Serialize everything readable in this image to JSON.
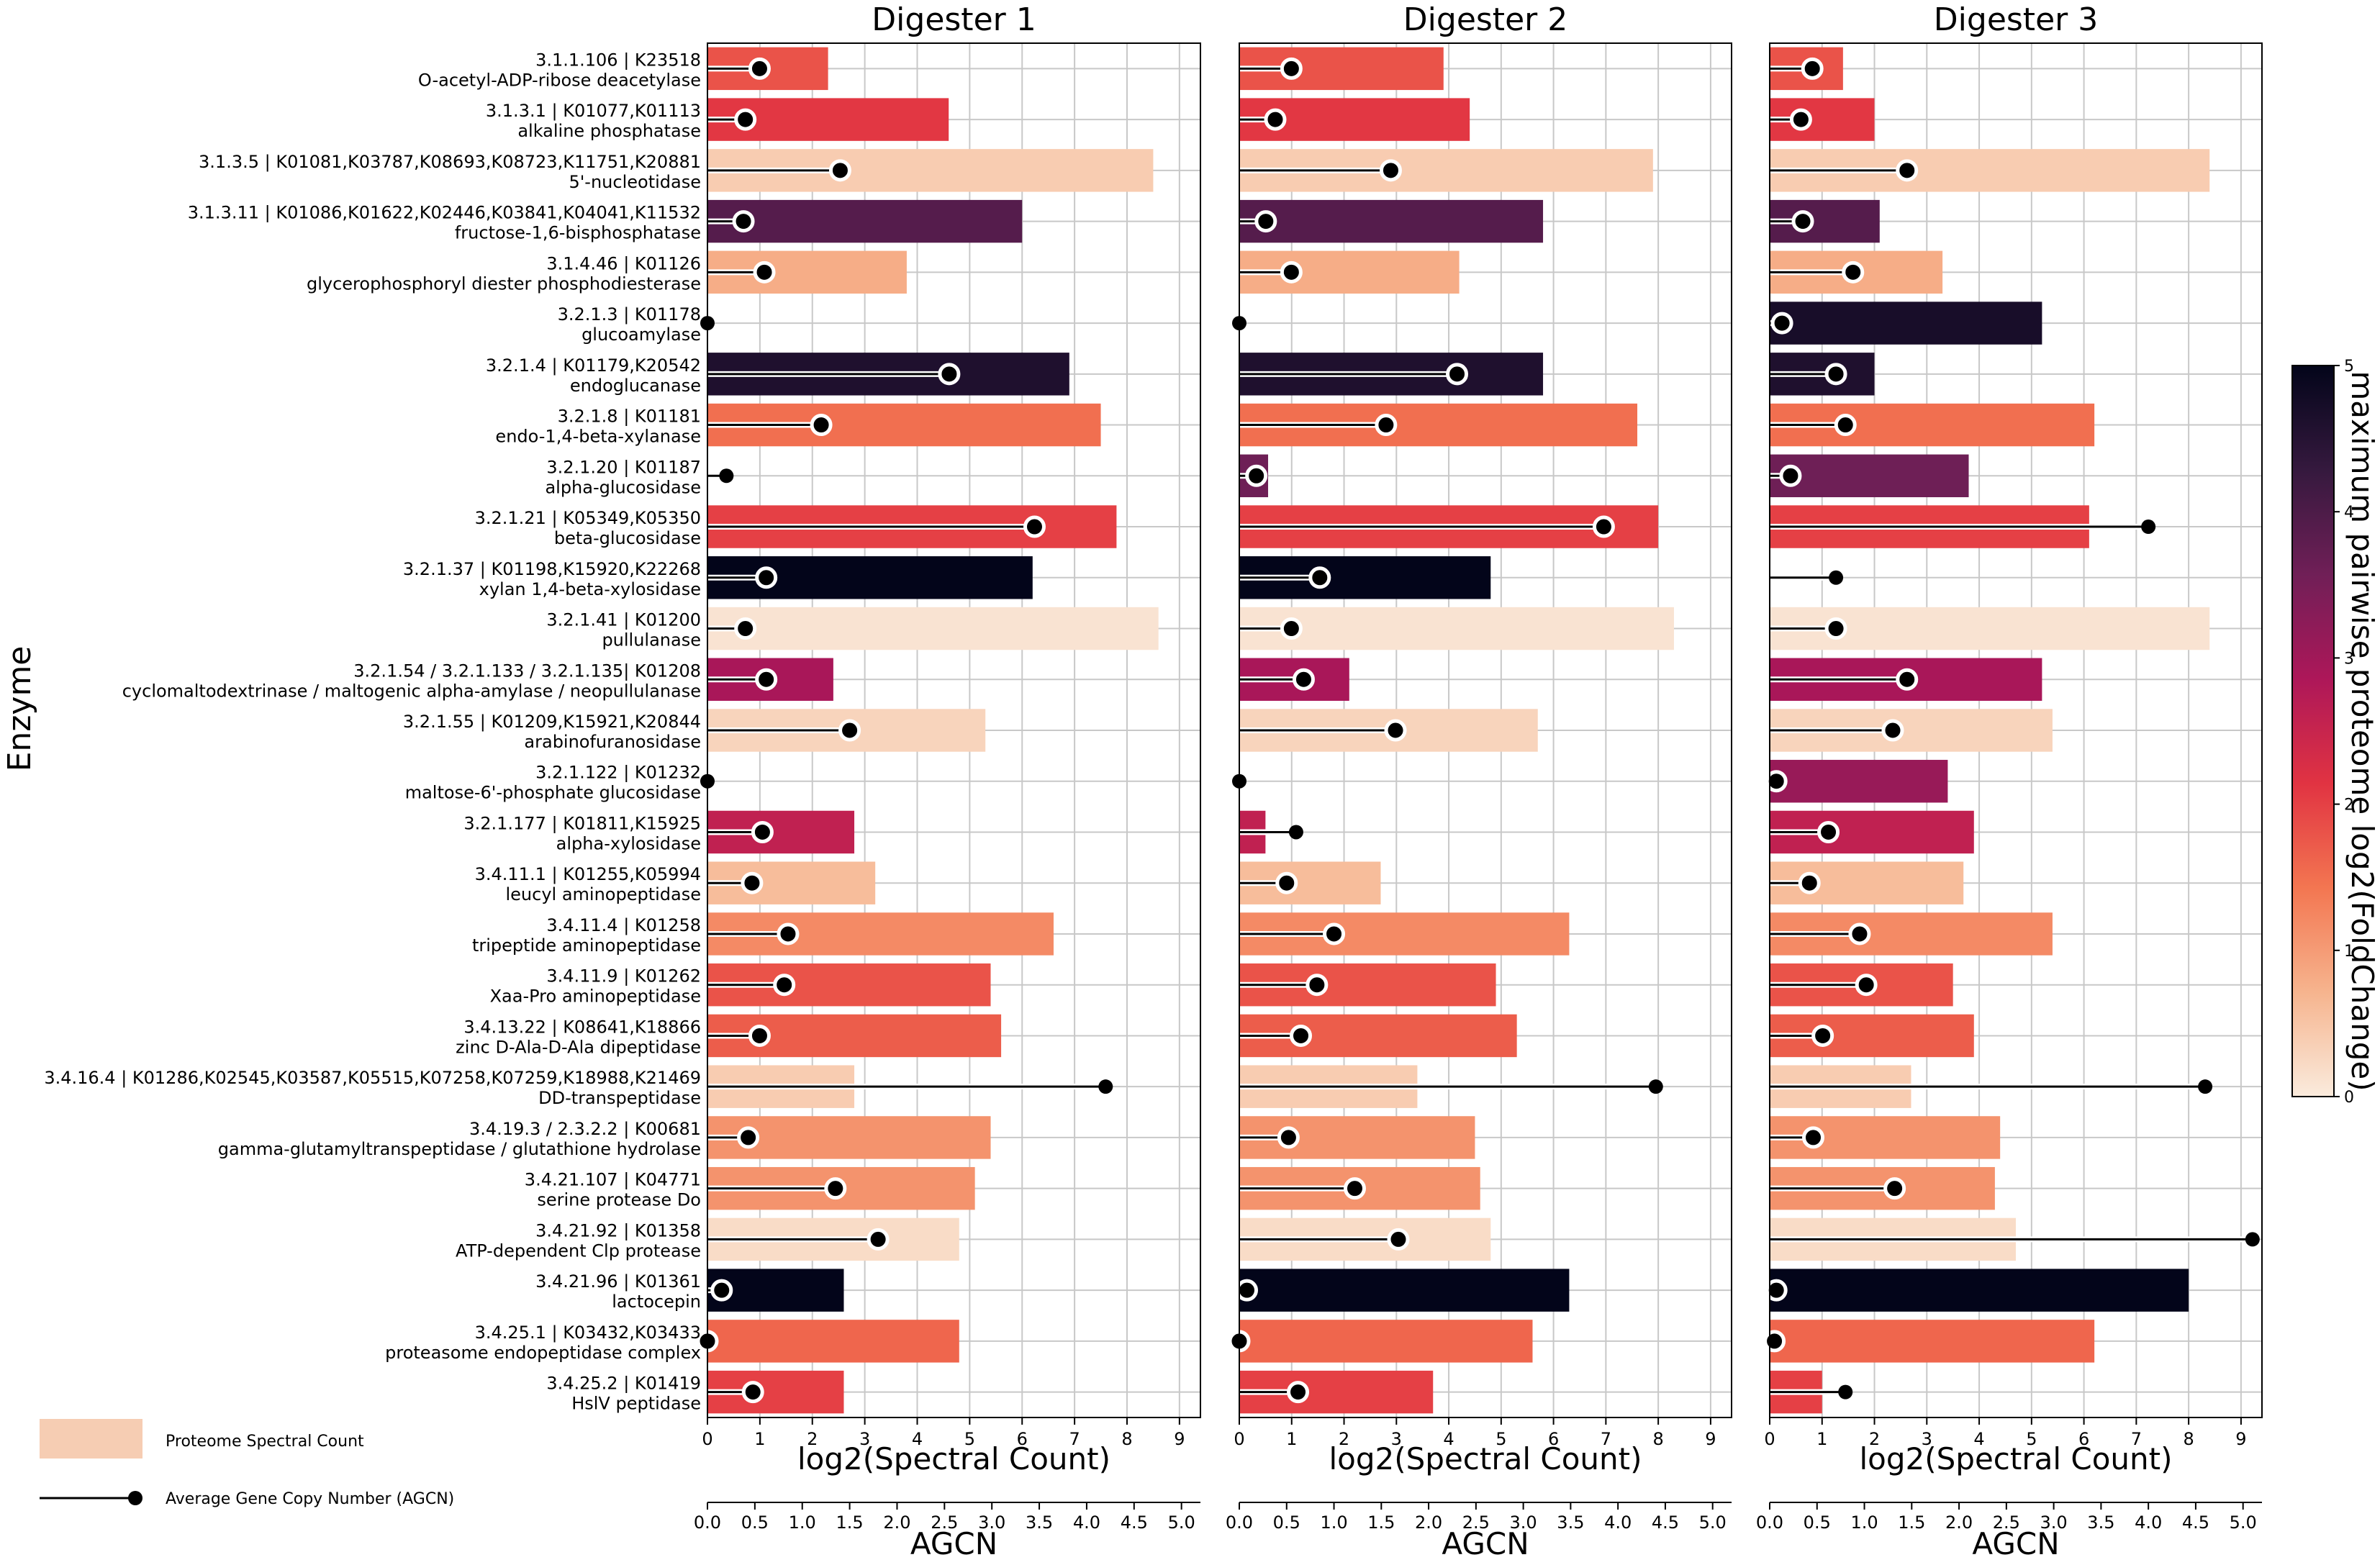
{
  "chart_data": {
    "type": "bar",
    "ylabel": "Enzyme",
    "xlabel_top": "log2(Spectral Count)",
    "xlabel_bottom": "AGCN",
    "spectral_xlim": [
      0,
      9.4
    ],
    "spectral_ticks": [
      "0",
      "1",
      "2",
      "3",
      "4",
      "5",
      "6",
      "7",
      "8",
      "9"
    ],
    "agcn_xlim": [
      0,
      5.2
    ],
    "agcn_ticks": [
      "0.0",
      "0.5",
      "1.0",
      "1.5",
      "2.0",
      "2.5",
      "3.0",
      "3.5",
      "4.0",
      "4.5",
      "5.0"
    ],
    "colorbar": {
      "label": "maximum pairwise proteome log2(FoldChange)",
      "min": 0,
      "max": 5,
      "ticks": [
        "0",
        "1",
        "2",
        "3",
        "4",
        "5"
      ],
      "stops": [
        "#faebdd",
        "#f6b48e",
        "#f37651",
        "#e13342",
        "#ad1759",
        "#701f57",
        "#35193e",
        "#03051a"
      ]
    },
    "legend": {
      "bar_label": "Proteome Spectral Count",
      "lollipop_label": "Average Gene Copy Number (AGCN)",
      "bar_color": "#f6cdb3"
    },
    "enzymes": [
      {
        "ec": "3.1.1.106 | K23518",
        "name": "O-acetyl-ADP-ribose deacetylase"
      },
      {
        "ec": "3.1.3.1 | K01077,K01113",
        "name": "alkaline phosphatase"
      },
      {
        "ec": "3.1.3.5 | K01081,K03787,K08693,K08723,K11751,K20881",
        "name": "5'-nucleotidase"
      },
      {
        "ec": "3.1.3.11 | K01086,K01622,K02446,K03841,K04041,K11532",
        "name": "fructose-1,6-bisphosphatase"
      },
      {
        "ec": "3.1.4.46 | K01126",
        "name": "glycerophosphoryl diester phosphodiesterase"
      },
      {
        "ec": "3.2.1.3 | K01178",
        "name": "glucoamylase"
      },
      {
        "ec": "3.2.1.4 | K01179,K20542",
        "name": "endoglucanase"
      },
      {
        "ec": "3.2.1.8 | K01181",
        "name": "endo-1,4-beta-xylanase"
      },
      {
        "ec": "3.2.1.20 | K01187",
        "name": "alpha-glucosidase"
      },
      {
        "ec": "3.2.1.21 | K05349,K05350",
        "name": "beta-glucosidase"
      },
      {
        "ec": "3.2.1.37 | K01198,K15920,K22268",
        "name": "xylan 1,4-beta-xylosidase"
      },
      {
        "ec": "3.2.1.41 | K01200",
        "name": "pullulanase"
      },
      {
        "ec": "3.2.1.54 / 3.2.1.133 / 3.2.1.135| K01208",
        "name": "cyclomaltodextrinase / maltogenic alpha-amylase / neopullulanase"
      },
      {
        "ec": "3.2.1.55 | K01209,K15921,K20844",
        "name": "arabinofuranosidase"
      },
      {
        "ec": "3.2.1.122 | K01232",
        "name": "maltose-6'-phosphate glucosidase"
      },
      {
        "ec": "3.2.1.177 | K01811,K15925",
        "name": "alpha-xylosidase"
      },
      {
        "ec": "3.4.11.1 | K01255,K05994",
        "name": "leucyl aminopeptidase"
      },
      {
        "ec": "3.4.11.4 | K01258",
        "name": "tripeptide aminopeptidase"
      },
      {
        "ec": "3.4.11.9 | K01262",
        "name": "Xaa-Pro aminopeptidase"
      },
      {
        "ec": "3.4.13.22 | K08641,K18866",
        "name": "zinc D-Ala-D-Ala dipeptidase"
      },
      {
        "ec": "3.4.16.4 | K01286,K02545,K03587,K05515,K07258,K07259,K18988,K21469",
        "name": "DD-transpeptidase"
      },
      {
        "ec": "3.4.19.3 / 2.3.2.2 | K00681",
        "name": "gamma-glutamyltranspeptidase / glutathione hydrolase"
      },
      {
        "ec": "3.4.21.107 | K04771",
        "name": "serine protease Do"
      },
      {
        "ec": "3.4.21.92 | K01358",
        "name": "ATP-dependent Clp protease"
      },
      {
        "ec": "3.4.21.96 | K01361",
        "name": "lactocepin"
      },
      {
        "ec": "3.4.25.1 | K03432,K03433",
        "name": "proteasome endopeptidase complex"
      },
      {
        "ec": "3.4.25.2 | K01419",
        "name": "HslV peptidase"
      }
    ],
    "foldchange": [
      1.8,
      2.1,
      0.4,
      3.9,
      0.8,
      4.7,
      4.6,
      1.5,
      3.6,
      2.0,
      5.0,
      0.1,
      2.9,
      0.3,
      3.1,
      2.6,
      0.6,
      1.2,
      1.8,
      1.7,
      0.4,
      1.1,
      1.1,
      0.2,
      5.0,
      1.6,
      2.0
    ],
    "series": [
      {
        "name": "Digester 1",
        "spectral": [
          2.3,
          4.6,
          8.5,
          6.0,
          3.8,
          0,
          6.9,
          7.5,
          0,
          7.8,
          6.2,
          8.6,
          2.4,
          5.3,
          0,
          2.8,
          3.2,
          6.6,
          5.4,
          5.6,
          2.8,
          5.4,
          5.1,
          4.8,
          2.6,
          4.8,
          2.6
        ],
        "agcn": [
          0.55,
          0.4,
          1.4,
          0.38,
          0.6,
          0.0,
          2.55,
          1.2,
          0.2,
          3.45,
          0.62,
          0.4,
          0.62,
          1.5,
          0.0,
          0.58,
          0.47,
          0.85,
          0.81,
          0.55,
          4.2,
          0.43,
          1.35,
          1.8,
          0.15,
          0.0,
          0.48
        ]
      },
      {
        "name": "Digester 2",
        "spectral": [
          3.9,
          4.4,
          7.9,
          5.8,
          4.2,
          0,
          5.8,
          7.6,
          0.55,
          8.0,
          4.8,
          8.3,
          2.1,
          5.7,
          0,
          0.5,
          2.7,
          6.3,
          4.9,
          5.3,
          3.4,
          4.5,
          4.6,
          4.8,
          6.3,
          5.6,
          3.7
        ],
        "agcn": [
          0.55,
          0.38,
          1.6,
          0.28,
          0.55,
          0.0,
          2.3,
          1.55,
          0.18,
          3.85,
          0.85,
          0.55,
          0.68,
          1.65,
          0.0,
          0.6,
          0.5,
          1.0,
          0.82,
          0.65,
          4.4,
          0.52,
          1.22,
          1.68,
          0.08,
          0.0,
          0.62
        ]
      },
      {
        "name": "Digester 3",
        "spectral": [
          1.4,
          2.0,
          8.4,
          2.1,
          3.3,
          5.2,
          2.0,
          6.2,
          3.8,
          6.1,
          0,
          8.4,
          5.2,
          5.4,
          3.4,
          3.9,
          3.7,
          5.4,
          3.5,
          3.9,
          2.7,
          4.4,
          4.3,
          4.7,
          8.0,
          6.2,
          1.0
        ],
        "agcn": [
          0.45,
          0.33,
          1.45,
          0.35,
          0.88,
          0.13,
          0.7,
          0.8,
          0.22,
          4.0,
          0.7,
          0.7,
          1.45,
          1.3,
          0.07,
          0.62,
          0.42,
          0.95,
          1.02,
          0.56,
          4.6,
          0.46,
          1.32,
          5.1,
          0.07,
          0.05,
          0.8
        ]
      }
    ]
  }
}
